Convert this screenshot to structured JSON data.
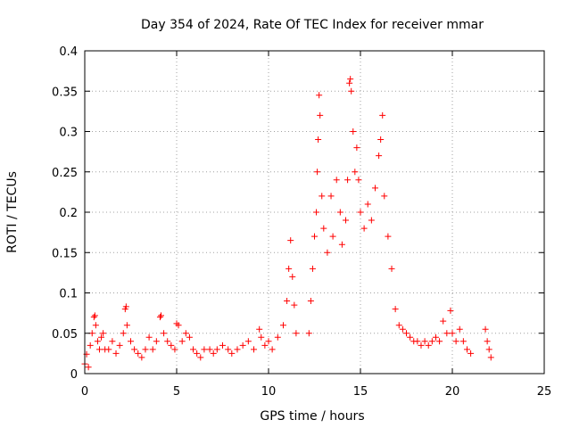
{
  "chart_data": {
    "type": "scatter",
    "title": "Day 354 of 2024, Rate Of TEC Index for receiver mmar",
    "xlabel": "GPS time / hours",
    "ylabel": "ROTI / TECUs",
    "xlim": [
      0,
      25
    ],
    "ylim": [
      0,
      0.4
    ],
    "x_ticks": [
      "0",
      "5",
      "10",
      "15",
      "20",
      "25"
    ],
    "y_ticks": [
      "0",
      "0.05",
      "0.1",
      "0.15",
      "0.2",
      "0.25",
      "0.3",
      "0.35",
      "0.4"
    ],
    "grid": true,
    "marker": "plus",
    "color": "#ff0000",
    "series": [
      {
        "points": [
          [
            0.0,
            0.012
          ],
          [
            0.1,
            0.024
          ],
          [
            0.2,
            0.008
          ],
          [
            0.3,
            0.035
          ],
          [
            0.4,
            0.05
          ],
          [
            0.5,
            0.07
          ],
          [
            0.55,
            0.072
          ],
          [
            0.6,
            0.06
          ],
          [
            0.7,
            0.04
          ],
          [
            0.8,
            0.03
          ],
          [
            0.9,
            0.045
          ],
          [
            1.0,
            0.05
          ],
          [
            1.1,
            0.03
          ],
          [
            1.3,
            0.03
          ],
          [
            1.5,
            0.04
          ],
          [
            1.7,
            0.025
          ],
          [
            1.9,
            0.035
          ],
          [
            2.1,
            0.05
          ],
          [
            2.2,
            0.08
          ],
          [
            2.25,
            0.083
          ],
          [
            2.3,
            0.06
          ],
          [
            2.5,
            0.04
          ],
          [
            2.7,
            0.03
          ],
          [
            2.9,
            0.025
          ],
          [
            3.1,
            0.02
          ],
          [
            3.3,
            0.03
          ],
          [
            3.5,
            0.045
          ],
          [
            3.7,
            0.03
          ],
          [
            3.9,
            0.04
          ],
          [
            4.1,
            0.07
          ],
          [
            4.15,
            0.072
          ],
          [
            4.3,
            0.05
          ],
          [
            4.5,
            0.04
          ],
          [
            4.7,
            0.035
          ],
          [
            4.9,
            0.03
          ],
          [
            5.0,
            0.062
          ],
          [
            5.1,
            0.06
          ],
          [
            5.3,
            0.04
          ],
          [
            5.5,
            0.05
          ],
          [
            5.7,
            0.045
          ],
          [
            5.9,
            0.03
          ],
          [
            6.1,
            0.025
          ],
          [
            6.3,
            0.02
          ],
          [
            6.5,
            0.03
          ],
          [
            6.8,
            0.03
          ],
          [
            7.0,
            0.025
          ],
          [
            7.2,
            0.03
          ],
          [
            7.5,
            0.035
          ],
          [
            7.8,
            0.03
          ],
          [
            8.0,
            0.025
          ],
          [
            8.3,
            0.03
          ],
          [
            8.6,
            0.035
          ],
          [
            8.9,
            0.04
          ],
          [
            9.2,
            0.03
          ],
          [
            9.5,
            0.055
          ],
          [
            9.6,
            0.045
          ],
          [
            9.8,
            0.035
          ],
          [
            10.0,
            0.04
          ],
          [
            10.2,
            0.03
          ],
          [
            10.5,
            0.045
          ],
          [
            10.8,
            0.06
          ],
          [
            11.0,
            0.09
          ],
          [
            11.1,
            0.13
          ],
          [
            11.2,
            0.165
          ],
          [
            11.3,
            0.12
          ],
          [
            11.4,
            0.085
          ],
          [
            11.5,
            0.05
          ],
          [
            12.2,
            0.05
          ],
          [
            12.3,
            0.09
          ],
          [
            12.4,
            0.13
          ],
          [
            12.5,
            0.17
          ],
          [
            12.6,
            0.2
          ],
          [
            12.65,
            0.25
          ],
          [
            12.7,
            0.29
          ],
          [
            12.75,
            0.345
          ],
          [
            12.8,
            0.32
          ],
          [
            12.9,
            0.22
          ],
          [
            13.0,
            0.18
          ],
          [
            13.2,
            0.15
          ],
          [
            13.4,
            0.22
          ],
          [
            13.5,
            0.17
          ],
          [
            13.7,
            0.24
          ],
          [
            13.9,
            0.2
          ],
          [
            14.0,
            0.16
          ],
          [
            14.2,
            0.19
          ],
          [
            14.3,
            0.24
          ],
          [
            14.4,
            0.36
          ],
          [
            14.45,
            0.365
          ],
          [
            14.5,
            0.35
          ],
          [
            14.6,
            0.3
          ],
          [
            14.7,
            0.25
          ],
          [
            14.8,
            0.28
          ],
          [
            14.9,
            0.24
          ],
          [
            15.0,
            0.2
          ],
          [
            15.2,
            0.18
          ],
          [
            15.4,
            0.21
          ],
          [
            15.6,
            0.19
          ],
          [
            15.8,
            0.23
          ],
          [
            16.0,
            0.27
          ],
          [
            16.1,
            0.29
          ],
          [
            16.2,
            0.32
          ],
          [
            16.3,
            0.22
          ],
          [
            16.5,
            0.17
          ],
          [
            16.7,
            0.13
          ],
          [
            16.9,
            0.08
          ],
          [
            17.1,
            0.06
          ],
          [
            17.3,
            0.055
          ],
          [
            17.5,
            0.05
          ],
          [
            17.7,
            0.045
          ],
          [
            17.9,
            0.04
          ],
          [
            18.1,
            0.04
          ],
          [
            18.3,
            0.035
          ],
          [
            18.5,
            0.04
          ],
          [
            18.7,
            0.035
          ],
          [
            18.9,
            0.04
          ],
          [
            19.1,
            0.045
          ],
          [
            19.3,
            0.04
          ],
          [
            19.5,
            0.065
          ],
          [
            19.7,
            0.05
          ],
          [
            19.9,
            0.078
          ],
          [
            20.0,
            0.05
          ],
          [
            20.2,
            0.04
          ],
          [
            20.4,
            0.055
          ],
          [
            20.6,
            0.04
          ],
          [
            20.8,
            0.03
          ],
          [
            21.0,
            0.025
          ],
          [
            21.8,
            0.055
          ],
          [
            21.9,
            0.04
          ],
          [
            22.0,
            0.03
          ],
          [
            22.1,
            0.02
          ]
        ]
      }
    ]
  }
}
